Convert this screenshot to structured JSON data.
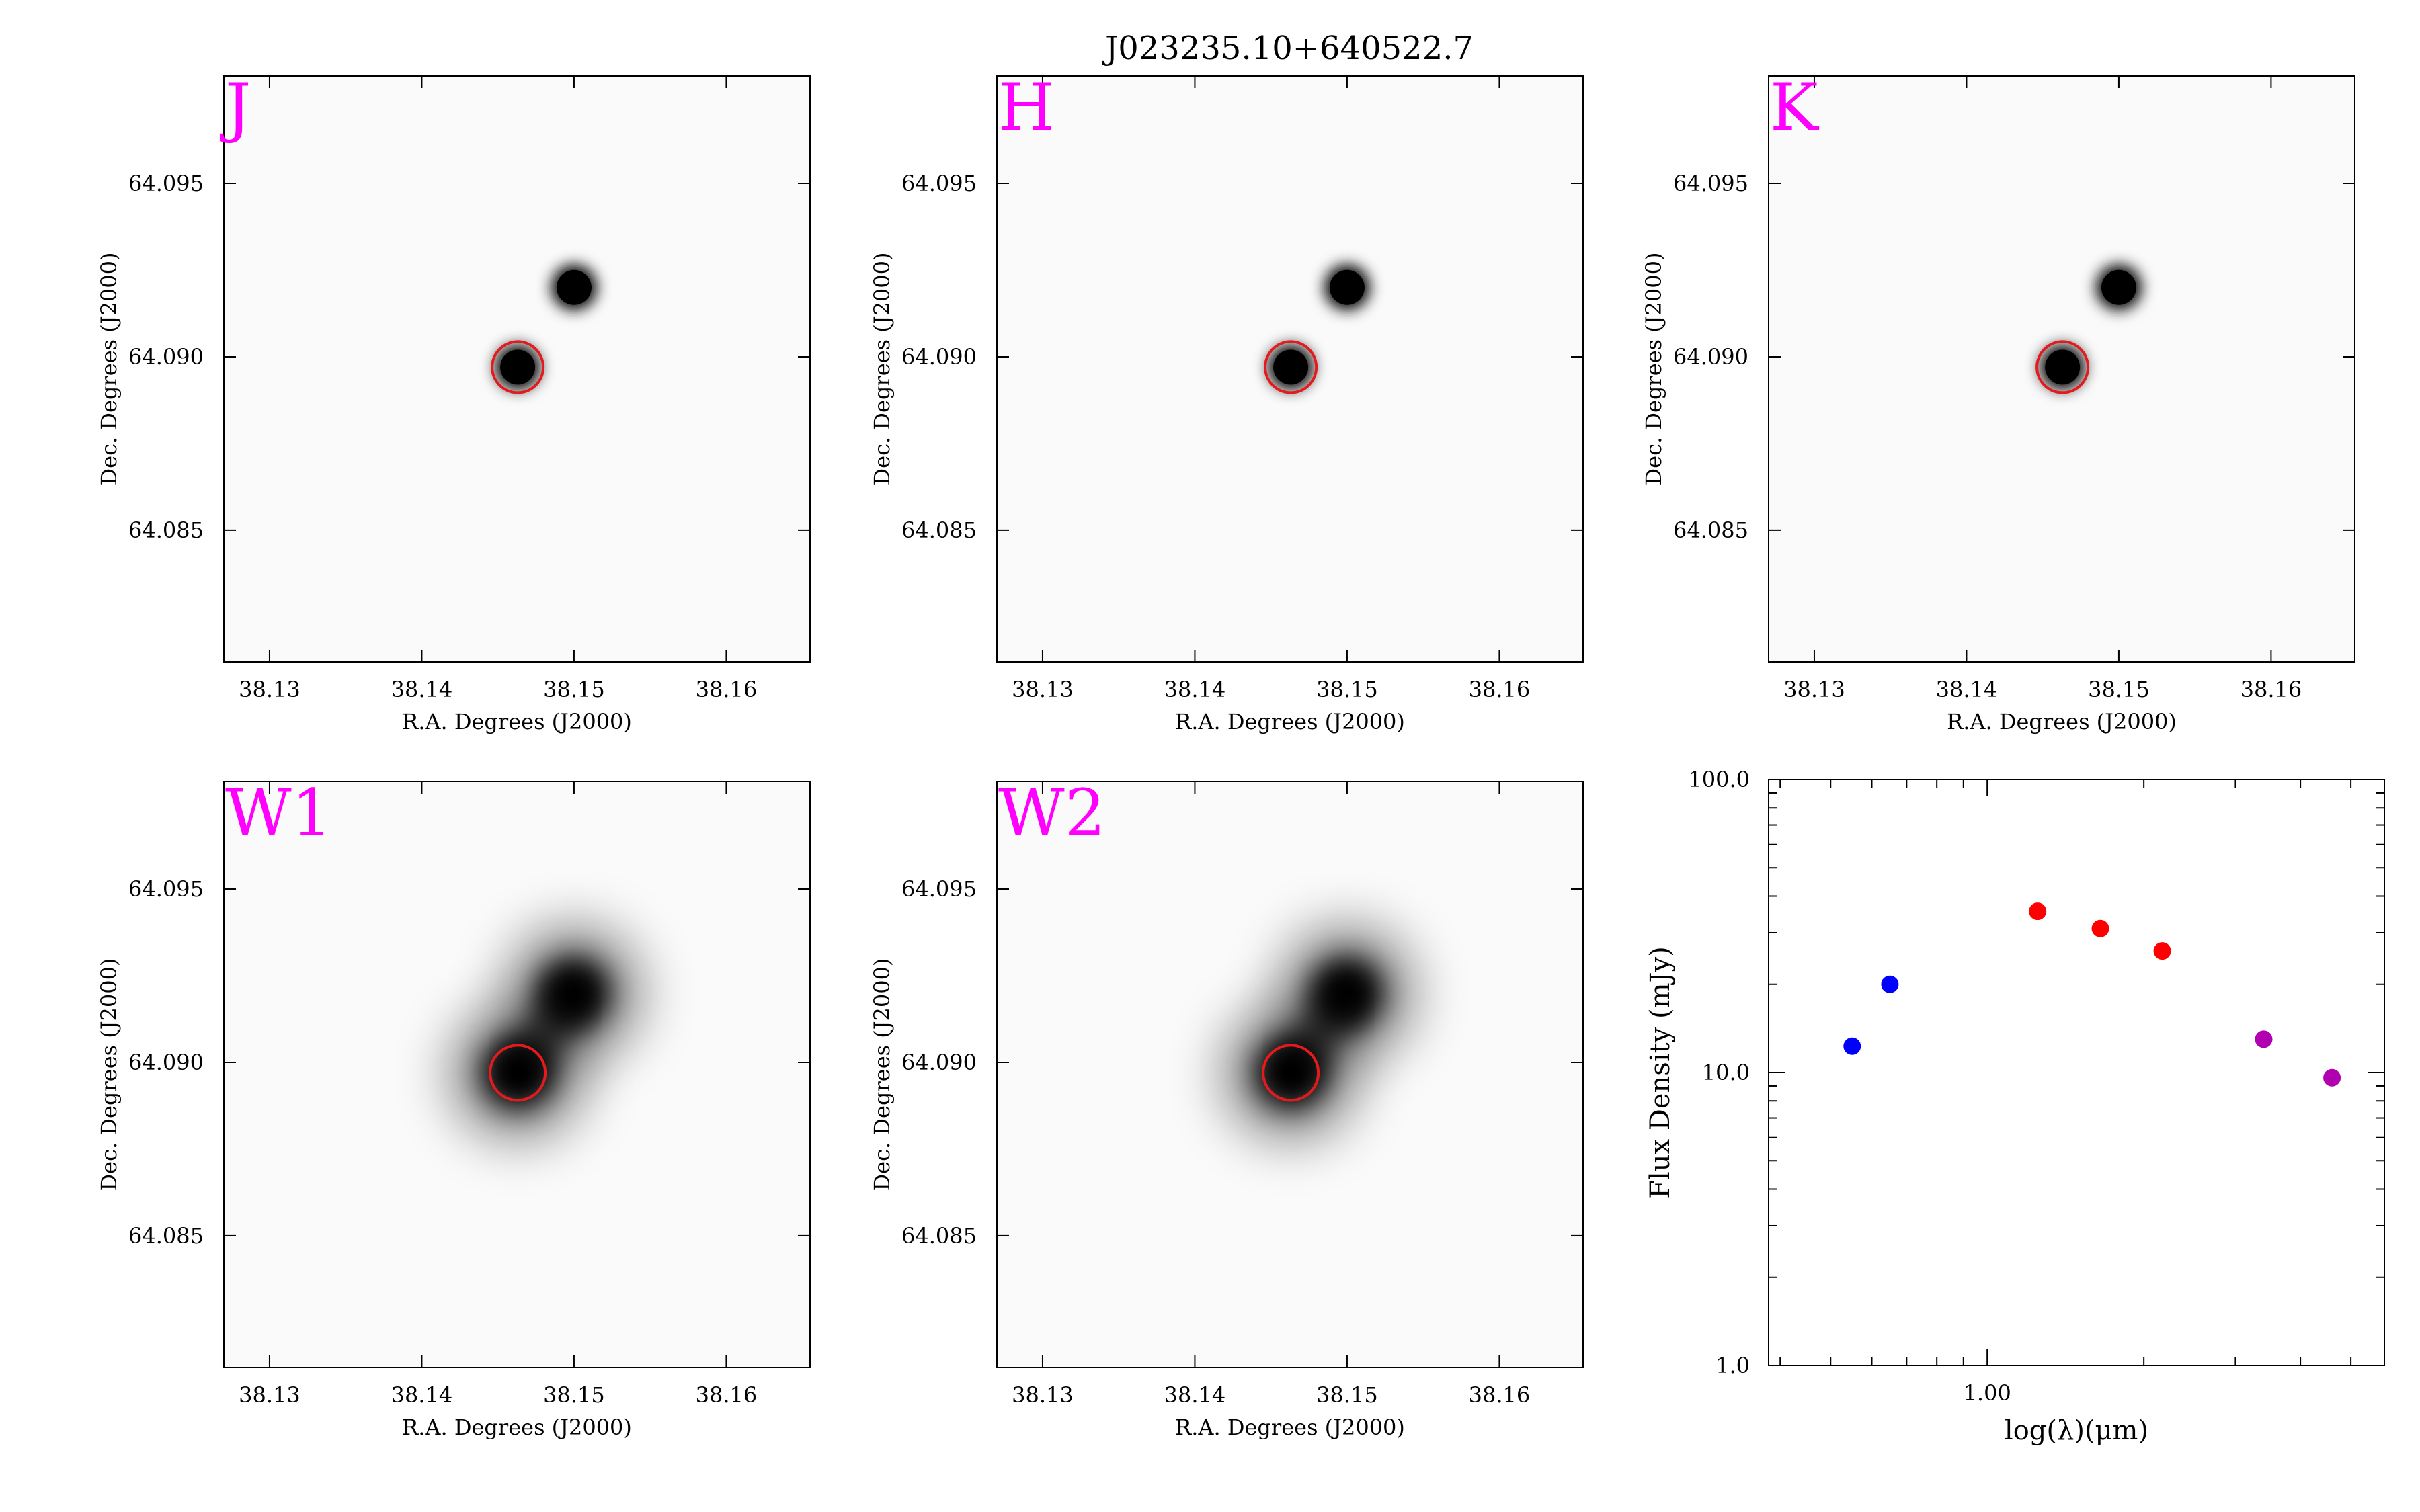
{
  "figure_title": "J023235.10+640522.7",
  "image_panels": [
    {
      "band": "J",
      "band_color": "#ff00ff"
    },
    {
      "band": "H",
      "band_color": "#ff00ff"
    },
    {
      "band": "K",
      "band_color": "#ff00ff"
    },
    {
      "band": "W1",
      "band_color": "#ff00ff"
    },
    {
      "band": "W2",
      "band_color": "#ff00ff"
    }
  ],
  "image_axes": {
    "xlabel": "R.A. Degrees (J2000)",
    "ylabel": "Dec. Degrees (J2000)",
    "xticks": [
      "38.13",
      "38.14",
      "38.15",
      "38.16"
    ],
    "yticks": [
      "64.095",
      "64.090",
      "64.085"
    ],
    "xrange": [
      38.127,
      38.1655
    ],
    "yrange": [
      64.0812,
      64.0981
    ]
  },
  "sources": [
    {
      "ra": 38.1463,
      "dec": 64.0897,
      "circled": true
    },
    {
      "ra": 38.15,
      "dec": 64.092,
      "circled": false
    }
  ],
  "circle_color": "#e41a1c",
  "chart_data": {
    "type": "scatter",
    "title": "",
    "xlabel": "log(λ)(μm)",
    "ylabel": "Flux Density (mJy)",
    "xscale": "log",
    "yscale": "log",
    "xlim": [
      0.38,
      5.8
    ],
    "ylim": [
      1.0,
      100.0
    ],
    "xtick_labels": [
      "1.00"
    ],
    "ytick_labels": [
      "1.0",
      "10.0",
      "100.0"
    ],
    "grid": false,
    "series": [
      {
        "color": "#0000ff",
        "x": [
          0.55,
          0.65
        ],
        "y": [
          12.3,
          20.0
        ]
      },
      {
        "color": "#ff0000",
        "x": [
          1.25,
          1.65,
          2.17
        ],
        "y": [
          35.5,
          31.0,
          26.0
        ]
      },
      {
        "color": "#b000b0",
        "x": [
          3.4,
          4.6
        ],
        "y": [
          13.0,
          9.6
        ]
      }
    ]
  }
}
